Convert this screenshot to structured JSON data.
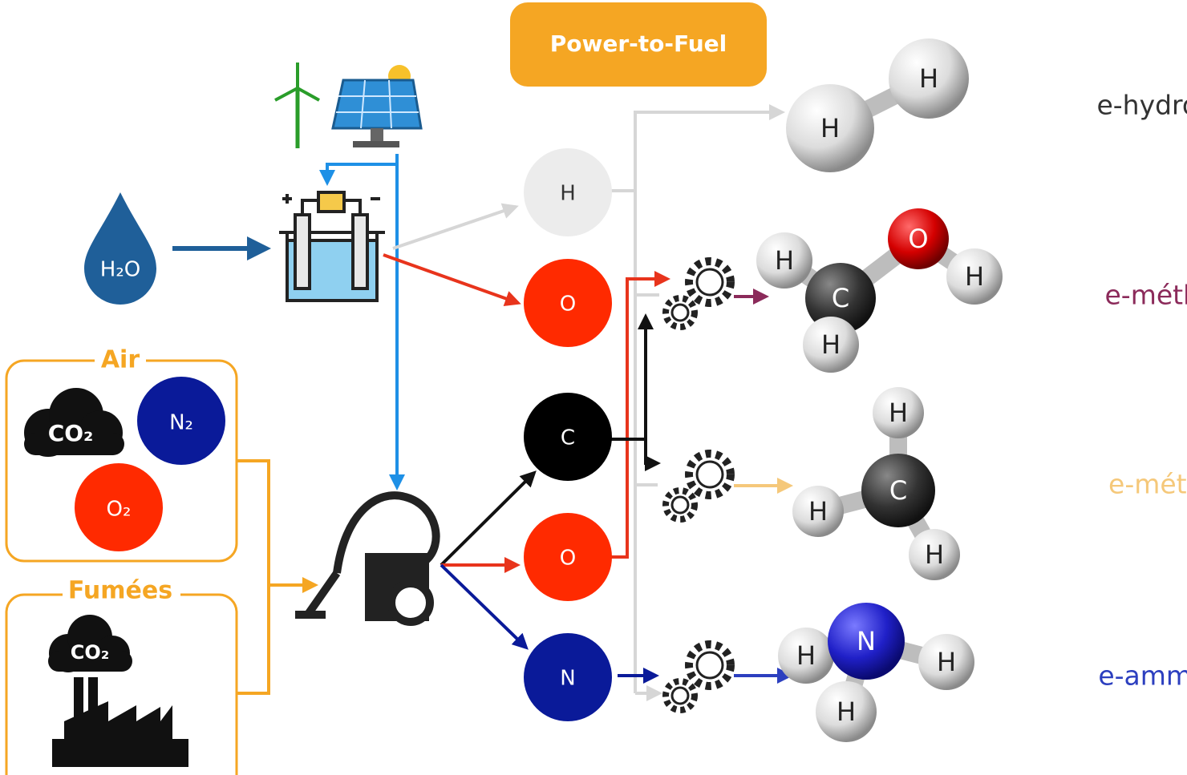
{
  "title": "Power-to-Fuel",
  "water": "H₂O",
  "air": {
    "label": "Air",
    "items": [
      "CO₂",
      "N₂",
      "O₂"
    ]
  },
  "fumes": {
    "label": "Fumées",
    "items": [
      "CO₂"
    ]
  },
  "elements": [
    "H",
    "O",
    "C",
    "O",
    "N"
  ],
  "products": [
    {
      "name": "e-hydrogène",
      "color": "#333333",
      "atoms": [
        "H",
        "H"
      ]
    },
    {
      "name": "e-méthanol",
      "color": "#8b2a5a",
      "atoms": [
        "H",
        "O",
        "H",
        "C",
        "H"
      ]
    },
    {
      "name": "e-méthane",
      "color": "#f5c87a",
      "atoms": [
        "H",
        "C",
        "H",
        "H"
      ]
    },
    {
      "name": "e-ammoniac",
      "color": "#2c3fbf",
      "atoms": [
        "H",
        "N",
        "H",
        "H"
      ]
    }
  ]
}
